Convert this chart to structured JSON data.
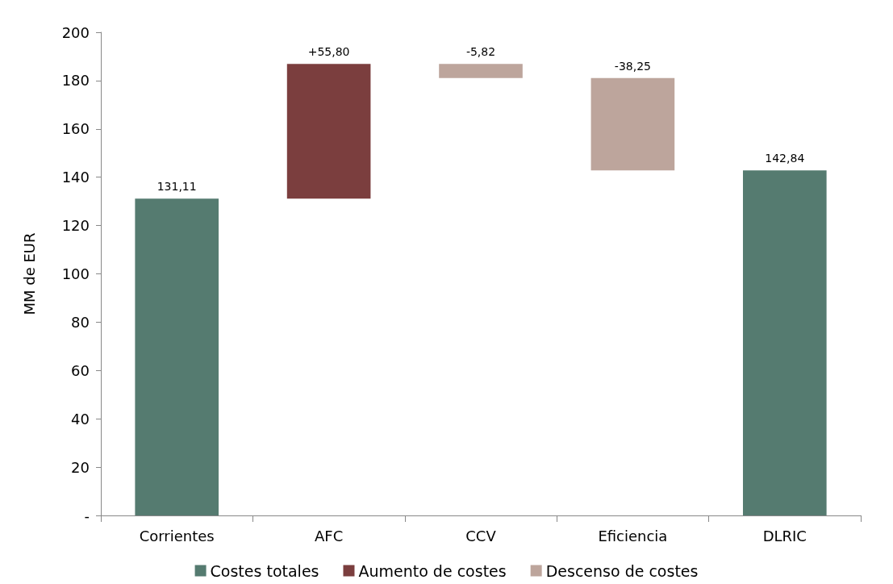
{
  "chart_data": {
    "type": "bar",
    "ylabel": "MM de EUR",
    "categories": [
      "Corrientes",
      "AFC",
      "CCV",
      "Eficiencia",
      "DLRIC"
    ],
    "series": [
      {
        "name": "Costes totales",
        "color": "#557b70",
        "values": [
          131.11,
          null,
          null,
          null,
          142.84
        ],
        "base": [
          0,
          null,
          null,
          null,
          0
        ],
        "value_labels": [
          "131,11",
          null,
          null,
          null,
          "142,84"
        ]
      },
      {
        "name": "Aumento de costes",
        "color": "#7b3e3e",
        "values": [
          null,
          55.8,
          null,
          null,
          null
        ],
        "base": [
          null,
          131.11,
          null,
          null,
          null
        ],
        "value_labels": [
          null,
          "+55,80",
          null,
          null,
          null
        ]
      },
      {
        "name": "Descenso de costes",
        "color": "#bda59c",
        "values": [
          null,
          null,
          -5.82,
          -38.25,
          null
        ],
        "base": [
          null,
          null,
          186.91,
          181.09,
          null
        ],
        "value_labels": [
          null,
          null,
          "-5,82",
          "-38,25",
          null
        ]
      }
    ],
    "ylim": [
      0,
      200
    ],
    "yticks": [
      {
        "value": 0,
        "label": "-"
      },
      20,
      40,
      60,
      80,
      100,
      120,
      140,
      160,
      180,
      200
    ],
    "grid": false,
    "legend": "bottom"
  }
}
